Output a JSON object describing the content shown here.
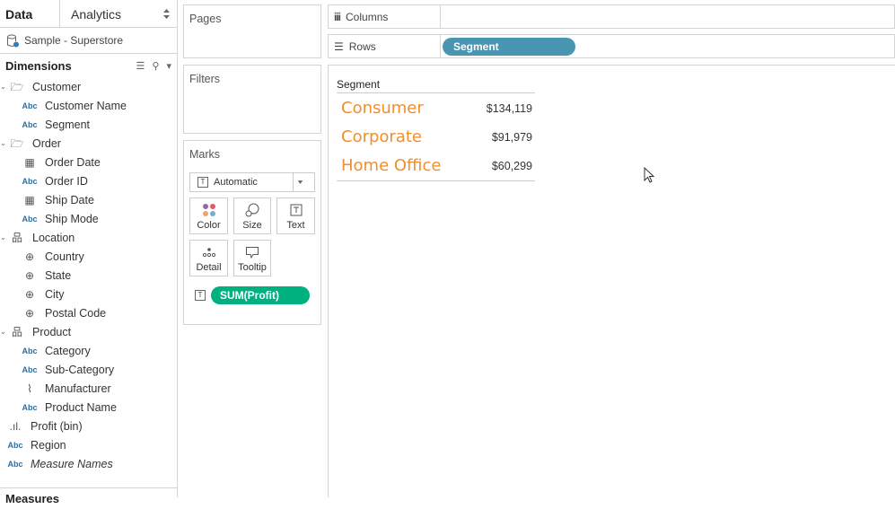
{
  "left_panel": {
    "tabs": [
      {
        "label": "Data"
      },
      {
        "label": "Analytics"
      }
    ],
    "datasource": "Sample - Superstore",
    "dimensions_header": "Dimensions",
    "measures_header": "Measures",
    "items": [
      {
        "label": "Customer",
        "icon": "folder-icon",
        "level": 0
      },
      {
        "label": "Customer Name",
        "icon": "abc-icon",
        "level": 1
      },
      {
        "label": "Segment",
        "icon": "abc-icon",
        "level": 1
      },
      {
        "label": "Order",
        "icon": "folder-icon",
        "level": 0
      },
      {
        "label": "Order Date",
        "icon": "calendar-icon",
        "level": 1
      },
      {
        "label": "Order ID",
        "icon": "abc-icon",
        "level": 1
      },
      {
        "label": "Ship Date",
        "icon": "calendar-icon",
        "level": 1
      },
      {
        "label": "Ship Mode",
        "icon": "abc-icon",
        "level": 1
      },
      {
        "label": "Location",
        "icon": "hierarchy-icon",
        "level": 0
      },
      {
        "label": "Country",
        "icon": "globe-icon",
        "level": 1
      },
      {
        "label": "State",
        "icon": "globe-icon",
        "level": 1
      },
      {
        "label": "City",
        "icon": "globe-icon",
        "level": 1
      },
      {
        "label": "Postal Code",
        "icon": "globe-icon",
        "level": 1
      },
      {
        "label": "Product",
        "icon": "hierarchy-icon",
        "level": 0
      },
      {
        "label": "Category",
        "icon": "abc-icon",
        "level": 1
      },
      {
        "label": "Sub-Category",
        "icon": "abc-icon",
        "level": 1
      },
      {
        "label": "Manufacturer",
        "icon": "paperclip-icon",
        "level": 1
      },
      {
        "label": "Product Name",
        "icon": "abc-icon",
        "level": 1
      },
      {
        "label": "Profit (bin)",
        "icon": "histogram-icon",
        "level": 0
      },
      {
        "label": "Region",
        "icon": "abc-icon",
        "level": 0
      },
      {
        "label": "Measure Names",
        "icon": "abc-icon",
        "level": 0,
        "italic": true
      }
    ]
  },
  "pages": {
    "title": "Pages"
  },
  "filters": {
    "title": "Filters"
  },
  "marks": {
    "title": "Marks",
    "type": "Automatic",
    "buttons": [
      "Color",
      "Size",
      "Text",
      "Detail",
      "Tooltip"
    ],
    "pill": "SUM(Profit)",
    "pill_color": "#00b180"
  },
  "columns": {
    "label": "Columns"
  },
  "rows": {
    "label": "Rows",
    "pill": "Segment",
    "pill_color": "#4996b2"
  },
  "view": {
    "header": "Segment",
    "rows": [
      {
        "segment": "Consumer",
        "profit": "$134,119"
      },
      {
        "segment": "Corporate",
        "profit": "$91,979"
      },
      {
        "segment": "Home Office",
        "profit": "$60,299"
      }
    ],
    "text_color": "#f28e2b"
  }
}
